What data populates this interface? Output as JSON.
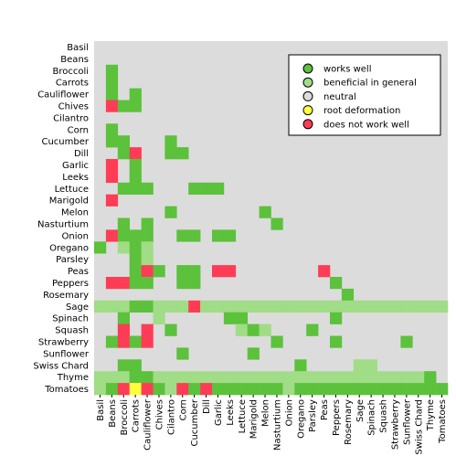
{
  "chart_data": {
    "type": "heatmap",
    "title": "",
    "xlabel": "",
    "ylabel": "",
    "x_labels": [
      "Basil",
      "Beans",
      "Broccoli",
      "Carrots",
      "Cauliflower",
      "Chives",
      "Cilantro",
      "Corn",
      "Cucumber",
      "Dill",
      "Garlic",
      "Leeks",
      "Lettuce",
      "Marigold",
      "Melon",
      "Nasturtium",
      "Onion",
      "Oregano",
      "Parsley",
      "Peas",
      "Peppers",
      "Rosemary",
      "Sage",
      "Spinach",
      "Squash",
      "Strawberry",
      "Sunflower",
      "Swiss Chard",
      "Thyme",
      "Tomatoes"
    ],
    "y_labels": [
      "Basil",
      "Beans",
      "Broccoli",
      "Carrots",
      "Cauliflower",
      "Chives",
      "Cilantro",
      "Corn",
      "Cucumber",
      "Dill",
      "Garlic",
      "Leeks",
      "Lettuce",
      "Marigold",
      "Melon",
      "Nasturtium",
      "Onion",
      "Oregano",
      "Parsley",
      "Peas",
      "Peppers",
      "Rosemary",
      "Sage",
      "Spinach",
      "Squash",
      "Strawberry",
      "Sunflower",
      "Swiss Chard",
      "Thyme",
      "Tomatoes"
    ],
    "categories": [
      {
        "key": "W",
        "name": "works well",
        "color": "#5cc13b"
      },
      {
        "key": "B",
        "name": "beneficial in general",
        "color": "#a1dc86"
      },
      {
        "key": "N",
        "name": "neutral",
        "color": "#dcdcdc"
      },
      {
        "key": "R",
        "name": "root deformation",
        "color": "#ffff3c"
      },
      {
        "key": "X",
        "name": "does not work well",
        "color": "#ff3c55"
      }
    ],
    "background_color": "#dcdcdc",
    "grid": false,
    "legend_position": "top-right",
    "rows": [
      "..............................",
      "..............................",
      ".W............................",
      ".W............................",
      ".W.W..........................",
      ".XWW..........................",
      "..............................",
      ".W............................",
      ".WW...W.......................",
      "..WX..WW......................",
      ".X.W..........................",
      ".X.W..........................",
      "..WWW...WWW...................",
      ".X............................",
      "......W.......W...............",
      "..W.W..........W..............",
      ".XWWW..WW.WW..................",
      "W.BWB.........................",
      "...WB.........................",
      "...WXW.WW.XX.......X..........",
      ".XXWW..WW...........W.........",
      ".....................W........",
      "BBBWWBBBXBBBBBBBBBBBBBBBBBBBBB",
      "..W..B.....WW.......W.........",
      "..X.X.W.....BWB...W..........",
      ".WXWX..........W....W.....W...",
      ".......W.....W................",
      "..WW.............W....BB......",
      "BBBWWBBBBBBBBBBBBBBBBBBBBBBBW.",
      "BWXRXWBXWXWWWWWWBWWWWWWWWWWWWW"
    ]
  }
}
